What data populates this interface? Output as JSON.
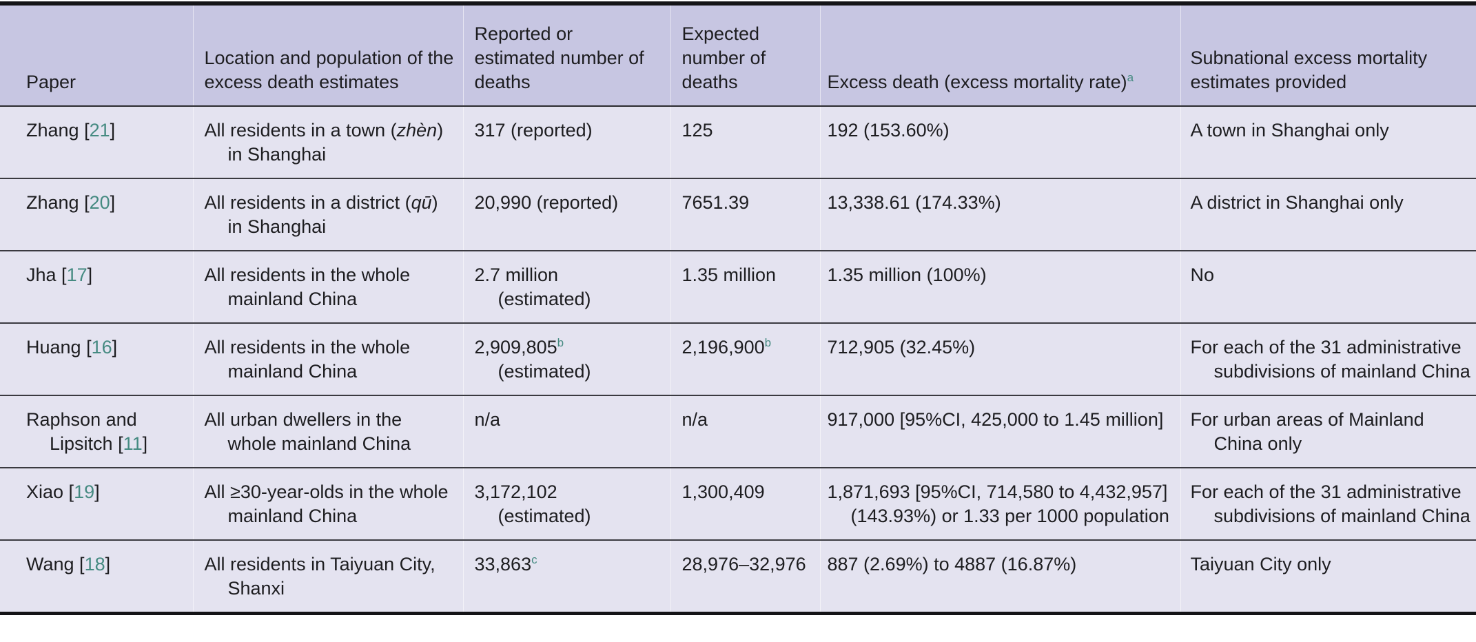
{
  "table": {
    "colors": {
      "header_bg": "#c7c6e2",
      "row_bg": "#e4e3f0",
      "text": "#1d1d20",
      "citation_accent": "#458a81",
      "rule_dark": "#141417"
    },
    "columns": [
      {
        "id": "paper",
        "label": "Paper"
      },
      {
        "id": "location_population",
        "label": "Location and population of the excess death estimates"
      },
      {
        "id": "reported_deaths",
        "label": "Reported or estimated number of deaths"
      },
      {
        "id": "expected_deaths",
        "label": "Expected number of deaths"
      },
      {
        "id": "excess_death",
        "label": "Excess death (excess mortality rate)^{a}"
      },
      {
        "id": "subnational",
        "label": "Subnational excess mortality estimates provided"
      }
    ],
    "rows": [
      [
        "Zhang [[21]]",
        "All residents in a town (*zhèn*) in Shanghai",
        "317 (reported)",
        "125",
        "192 (153.60%)",
        "A town in Shanghai only"
      ],
      [
        "Zhang [[20]]",
        "All residents in a district (*qū*) in Shanghai",
        "20,990 (reported)",
        "7651.39",
        "13,338.61 (174.33%)",
        "A district in Shanghai only"
      ],
      [
        "Jha [[17]]",
        "All residents in the whole mainland China",
        "2.7 million (estimated)",
        "1.35 million",
        "1.35 million (100%)",
        "No"
      ],
      [
        "Huang [[16]]",
        "All residents in the whole mainland China",
        "2,909,805^{b} (estimated)",
        "2,196,900^{b}",
        "712,905 (32.45%)",
        "For each of the 31 administrative subdivisions of mainland China"
      ],
      [
        "Raphson and Lipsitch [[11]]",
        "All urban dwellers in the whole mainland China",
        "n/a",
        "n/a",
        "917,000 [95%CI, 425,000 to 1.45 million]",
        "For urban areas of Mainland China only"
      ],
      [
        "Xiao [[19]]",
        "All ≥30-year-olds in the whole mainland China",
        "3,172,102 (estimated)",
        "1,300,409",
        "1,871,693 [95%CI, 714,580 to 4,432,957] (143.93%) or 1.33 per 1000 population",
        "For each of the 31 administrative subdivisions of mainland China"
      ],
      [
        "Wang [[18]]",
        "All residents in Taiyuan City, Shanxi",
        "33,863^{c}",
        "28,976–32,976",
        "887 (2.69%) to 4887 (16.87%)",
        "Taiyuan City only"
      ]
    ]
  }
}
